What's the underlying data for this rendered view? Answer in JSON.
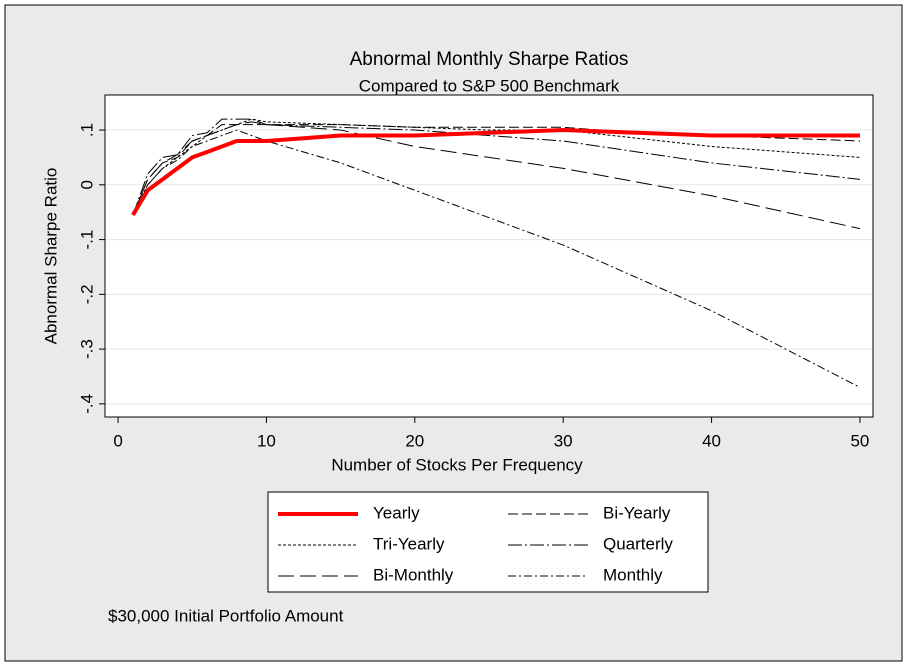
{
  "chart_data": {
    "type": "line",
    "title": "Abnormal Monthly Sharpe Ratios",
    "subtitle": "Compared to S&P 500 Benchmark",
    "xlabel": "Number of Stocks Per Frequency",
    "ylabel": "Abnormal Sharpe Ratio",
    "note": "$30,000 Initial Portfolio Amount",
    "x": [
      1,
      2,
      3,
      4,
      5,
      6,
      7,
      8,
      9,
      10,
      15,
      20,
      25,
      30,
      35,
      40,
      45,
      50
    ],
    "series": [
      {
        "name": "Yearly",
        "color": "#ff0000",
        "width": 4,
        "dash": "none",
        "values": [
          -0.055,
          -0.01,
          0.01,
          0.03,
          0.05,
          0.06,
          0.07,
          0.08,
          0.08,
          0.08,
          0.09,
          0.09,
          0.095,
          0.1,
          0.095,
          0.09,
          0.09,
          0.09
        ]
      },
      {
        "name": "Bi-Yearly",
        "color": "#000000",
        "width": 1,
        "dash": "10,4",
        "values": [
          -0.055,
          0.01,
          0.04,
          0.05,
          0.08,
          0.09,
          0.11,
          0.11,
          0.11,
          0.11,
          0.11,
          0.105,
          0.105,
          0.105,
          0.095,
          0.09,
          0.085,
          0.08
        ]
      },
      {
        "name": "Tri-Yearly",
        "color": "#000000",
        "width": 1,
        "dash": "3,2",
        "values": [
          -0.055,
          0.0,
          0.03,
          0.05,
          0.07,
          0.09,
          0.1,
          0.11,
          0.12,
          0.115,
          0.11,
          0.105,
          0.1,
          0.1,
          0.085,
          0.07,
          0.06,
          0.05
        ]
      },
      {
        "name": "Quarterly",
        "color": "#000000",
        "width": 1,
        "dash": "14,3,2,3",
        "values": [
          -0.055,
          0.02,
          0.05,
          0.055,
          0.09,
          0.095,
          0.12,
          0.12,
          0.12,
          0.11,
          0.105,
          0.1,
          0.09,
          0.08,
          0.06,
          0.04,
          0.025,
          0.01
        ]
      },
      {
        "name": "Bi-Monthly",
        "color": "#000000",
        "width": 1,
        "dash": "16,6",
        "values": [
          -0.055,
          0.01,
          0.04,
          0.055,
          0.08,
          0.09,
          0.1,
          0.11,
          0.115,
          0.11,
          0.1,
          0.07,
          0.05,
          0.03,
          0.005,
          -0.02,
          -0.05,
          -0.08
        ]
      },
      {
        "name": "Monthly",
        "color": "#000000",
        "width": 1,
        "dash": "8,3,2,3",
        "values": [
          -0.055,
          0.0,
          0.03,
          0.045,
          0.07,
          0.08,
          0.09,
          0.1,
          0.09,
          0.08,
          0.04,
          -0.01,
          -0.06,
          -0.11,
          -0.17,
          -0.23,
          -0.3,
          -0.37
        ]
      }
    ],
    "xlim": [
      -0.88,
      50.88
    ],
    "xticks": [
      0,
      10,
      20,
      30,
      40,
      50
    ],
    "ylim": [
      -0.424,
      0.164
    ],
    "yticks": [
      {
        "value": 0.1,
        "label": ".1"
      },
      0,
      {
        "value": -0.1,
        "label": "-.1"
      },
      {
        "value": -0.2,
        "label": "-.2"
      },
      {
        "value": -0.3,
        "label": "-.3"
      },
      {
        "value": -0.4,
        "label": "-.4"
      }
    ],
    "grid": true,
    "legend": "bottom"
  }
}
